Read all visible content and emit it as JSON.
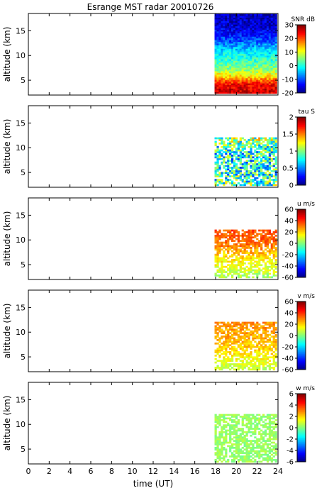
{
  "figure": {
    "title": "Esrange MST radar 20010726",
    "xlabel": "time (UT)"
  },
  "chart_data": [
    {
      "type": "heatmap",
      "ylabel": "altitude (km)",
      "xlim": [
        0,
        24
      ],
      "ylim": [
        2,
        18.5
      ],
      "x_ticks": [
        0,
        2,
        4,
        6,
        8,
        10,
        12,
        14,
        16,
        18,
        20,
        22,
        24
      ],
      "y_ticks": [
        5,
        10,
        15
      ],
      "data_x_range": [
        17.9,
        23.9
      ],
      "data_y_range": [
        2.3,
        18.3
      ],
      "colorbar": {
        "label": "SNR dB",
        "ticks": [
          -20,
          -10,
          0,
          10,
          20,
          30
        ],
        "range": [
          -20,
          30
        ]
      },
      "profile": {
        "altitude_km": [
          2.5,
          4,
          5.5,
          7,
          8.5,
          10,
          11.5,
          13,
          14.5,
          16,
          18
        ],
        "value": [
          26,
          24,
          14,
          6,
          2,
          -1,
          -5,
          -10,
          -14,
          -16,
          -17
        ]
      },
      "noise": 4
    },
    {
      "type": "heatmap",
      "ylabel": "altitude (km)",
      "xlim": [
        0,
        24
      ],
      "ylim": [
        2,
        18.5
      ],
      "x_ticks": [
        0,
        2,
        4,
        6,
        8,
        10,
        12,
        14,
        16,
        18,
        20,
        22,
        24
      ],
      "y_ticks": [
        5,
        10,
        15
      ],
      "data_x_range": [
        17.9,
        23.9
      ],
      "data_y_range": [
        2.3,
        11.8
      ],
      "colorbar": {
        "label": "tau S",
        "ticks": [
          0,
          0.5,
          1,
          1.5,
          2
        ],
        "range": [
          0,
          2
        ]
      },
      "profile": {
        "altitude_km": [
          2.5,
          6,
          9,
          11.8
        ],
        "value": [
          0.9,
          0.75,
          0.8,
          1.05
        ]
      },
      "noise": 0.45
    },
    {
      "type": "heatmap",
      "ylabel": "altitude (km)",
      "xlim": [
        0,
        24
      ],
      "ylim": [
        2,
        18.5
      ],
      "x_ticks": [
        0,
        2,
        4,
        6,
        8,
        10,
        12,
        14,
        16,
        18,
        20,
        22,
        24
      ],
      "y_ticks": [
        5,
        10,
        15
      ],
      "data_x_range": [
        17.9,
        23.9
      ],
      "data_y_range": [
        2.3,
        11.8
      ],
      "colorbar": {
        "label": "u m/s",
        "ticks": [
          -60,
          -40,
          -20,
          0,
          20,
          40,
          60
        ],
        "range": [
          -60,
          60
        ]
      },
      "profile": {
        "altitude_km": [
          2.5,
          5,
          7,
          9,
          11.8
        ],
        "value": [
          5,
          14,
          22,
          32,
          36
        ]
      },
      "noise": 7
    },
    {
      "type": "heatmap",
      "ylabel": "altitude (km)",
      "xlim": [
        0,
        24
      ],
      "ylim": [
        2,
        18.5
      ],
      "x_ticks": [
        0,
        2,
        4,
        6,
        8,
        10,
        12,
        14,
        16,
        18,
        20,
        22,
        24
      ],
      "y_ticks": [
        5,
        10,
        15
      ],
      "data_x_range": [
        17.9,
        23.9
      ],
      "data_y_range": [
        2.3,
        11.8
      ],
      "colorbar": {
        "label": "v m/s",
        "ticks": [
          -60,
          -40,
          -20,
          0,
          20,
          40,
          60
        ],
        "range": [
          -60,
          60
        ]
      },
      "profile": {
        "altitude_km": [
          2.5,
          5,
          8,
          11.8
        ],
        "value": [
          8,
          16,
          24,
          28
        ]
      },
      "noise": 6
    },
    {
      "type": "heatmap",
      "ylabel": "altitude (km)",
      "xlim": [
        0,
        24
      ],
      "ylim": [
        2,
        18.5
      ],
      "x_ticks": [
        0,
        2,
        4,
        6,
        8,
        10,
        12,
        14,
        16,
        18,
        20,
        22,
        24
      ],
      "y_ticks": [
        5,
        10,
        15
      ],
      "data_x_range": [
        17.9,
        23.9
      ],
      "data_y_range": [
        2.3,
        11.8
      ],
      "colorbar": {
        "label": "w m/s",
        "ticks": [
          -6,
          -4,
          -2,
          0,
          2,
          4,
          6
        ],
        "range": [
          -6,
          6
        ]
      },
      "profile": {
        "altitude_km": [
          2.5,
          11.8
        ],
        "value": [
          0.3,
          0.3
        ]
      },
      "noise": 0.5
    }
  ]
}
